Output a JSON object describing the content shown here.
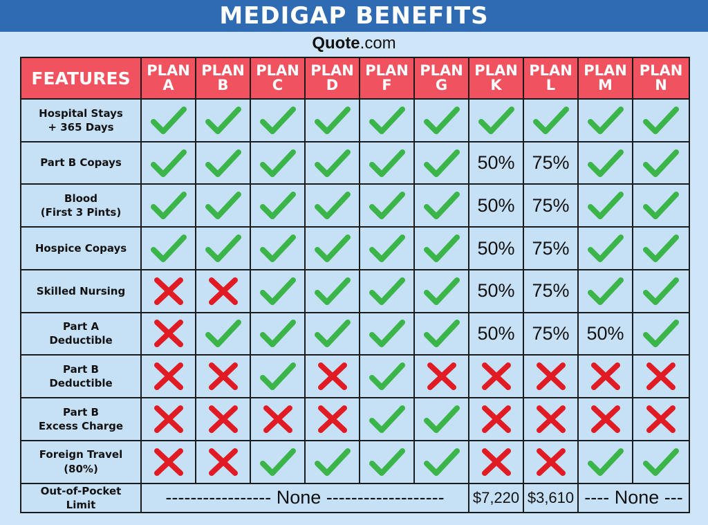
{
  "header": {
    "title": "MEDIGAP BENEFITS"
  },
  "brand": {
    "part1": "Quote",
    "part2": ".com"
  },
  "table": {
    "features_header": "FEATURES",
    "plans": [
      {
        "line1": "PLAN",
        "line2": "A"
      },
      {
        "line1": "PLAN",
        "line2": "B"
      },
      {
        "line1": "PLAN",
        "line2": "C"
      },
      {
        "line1": "PLAN",
        "line2": "D"
      },
      {
        "line1": "PLAN",
        "line2": "F"
      },
      {
        "line1": "PLAN",
        "line2": "G"
      },
      {
        "line1": "PLAN",
        "line2": "K"
      },
      {
        "line1": "PLAN",
        "line2": "L"
      },
      {
        "line1": "PLAN",
        "line2": "M"
      },
      {
        "line1": "PLAN",
        "line2": "N"
      }
    ],
    "rows": [
      {
        "feature": [
          "Hospital Stays",
          "+ 365 Days"
        ],
        "cells": [
          "check",
          "check",
          "check",
          "check",
          "check",
          "check",
          "check",
          "check",
          "check",
          "check"
        ]
      },
      {
        "feature": [
          "Part B Copays"
        ],
        "cells": [
          "check",
          "check",
          "check",
          "check",
          "check",
          "check",
          "50%",
          "75%",
          "check",
          "check"
        ]
      },
      {
        "feature": [
          "Blood",
          "(First 3 Pints)"
        ],
        "cells": [
          "check",
          "check",
          "check",
          "check",
          "check",
          "check",
          "50%",
          "75%",
          "check",
          "check"
        ]
      },
      {
        "feature": [
          "Hospice Copays"
        ],
        "cells": [
          "check",
          "check",
          "check",
          "check",
          "check",
          "check",
          "50%",
          "75%",
          "check",
          "check"
        ]
      },
      {
        "feature": [
          "Skilled Nursing"
        ],
        "cells": [
          "cross",
          "cross",
          "check",
          "check",
          "check",
          "check",
          "50%",
          "75%",
          "check",
          "check"
        ]
      },
      {
        "feature": [
          "Part A",
          "Deductible"
        ],
        "cells": [
          "cross",
          "check",
          "check",
          "check",
          "check",
          "check",
          "50%",
          "75%",
          "50%",
          "check"
        ]
      },
      {
        "feature": [
          "Part B",
          "Deductible"
        ],
        "cells": [
          "cross",
          "cross",
          "check",
          "cross",
          "check",
          "cross",
          "cross",
          "cross",
          "cross",
          "cross"
        ]
      },
      {
        "feature": [
          "Part B",
          "Excess Charge"
        ],
        "cells": [
          "cross",
          "cross",
          "cross",
          "cross",
          "check",
          "check",
          "cross",
          "cross",
          "cross",
          "cross"
        ]
      },
      {
        "feature": [
          "Foreign Travel",
          "(80%)"
        ],
        "cells": [
          "cross",
          "cross",
          "check",
          "check",
          "check",
          "check",
          "cross",
          "cross",
          "check",
          "check"
        ]
      }
    ],
    "oop": {
      "label": [
        "Out-of-Pocket",
        "Limit"
      ],
      "left_dashes": "-----------------",
      "left_none": "None",
      "left_dashes_after": "-------------------",
      "plan_k": "$7,220",
      "plan_l": "$3,610",
      "right_dashes": "----",
      "right_none": "None",
      "right_dashes_after": "---"
    }
  },
  "colors": {
    "check": "#3bb54a",
    "cross": "#e01b24",
    "header_bg": "#f0525f",
    "banner_bg": "#2e6bb3"
  },
  "icons": {
    "check": "checkmark-icon",
    "cross": "x-mark-icon"
  }
}
